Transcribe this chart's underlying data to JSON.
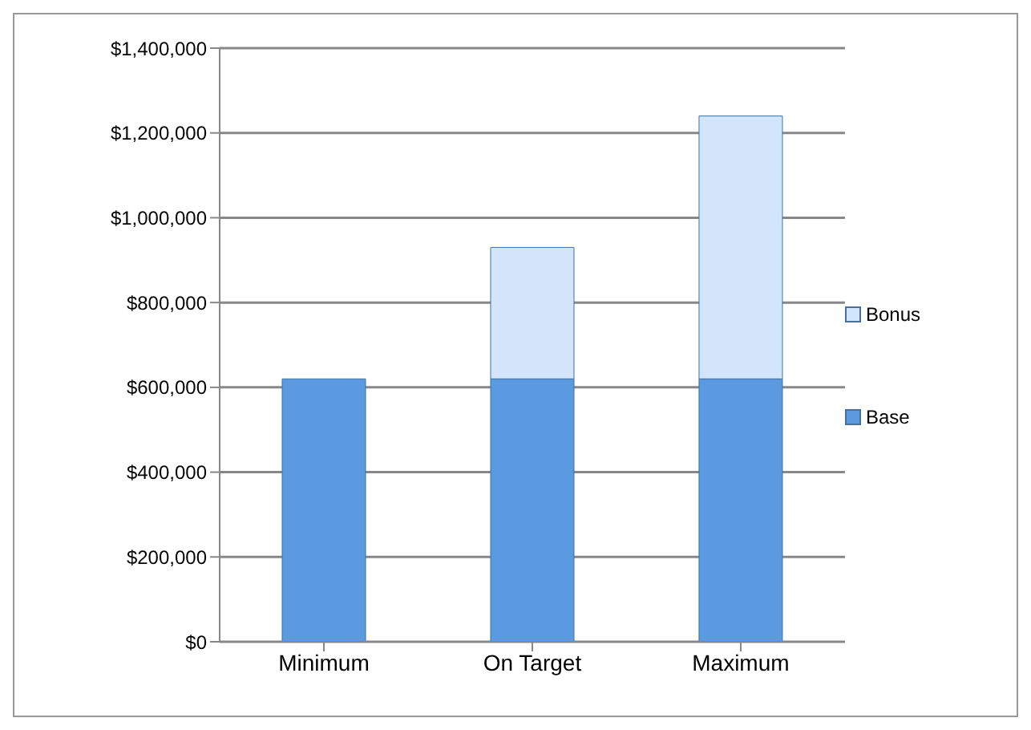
{
  "chart_data": {
    "type": "bar",
    "stacked": true,
    "categories": [
      "Minimum",
      "On Target",
      "Maximum"
    ],
    "series": [
      {
        "name": "Base",
        "color": "#5b9ae0",
        "values": [
          620000,
          620000,
          620000
        ]
      },
      {
        "name": "Bonus",
        "color": "#d3e5fb",
        "values": [
          0,
          310000,
          620000
        ]
      }
    ],
    "ylim": [
      0,
      1400000
    ],
    "yticks": [
      {
        "value": 0,
        "label": "$0"
      },
      {
        "value": 200000,
        "label": "$200,000"
      },
      {
        "value": 400000,
        "label": "$400,000"
      },
      {
        "value": 600000,
        "label": "$600,000"
      },
      {
        "value": 800000,
        "label": "$800,000"
      },
      {
        "value": 1000000,
        "label": "$1,000,000"
      },
      {
        "value": 1200000,
        "label": "$1,200,000"
      },
      {
        "value": 1400000,
        "label": "$1,400,000"
      }
    ],
    "grid": "y",
    "legend": "right"
  }
}
